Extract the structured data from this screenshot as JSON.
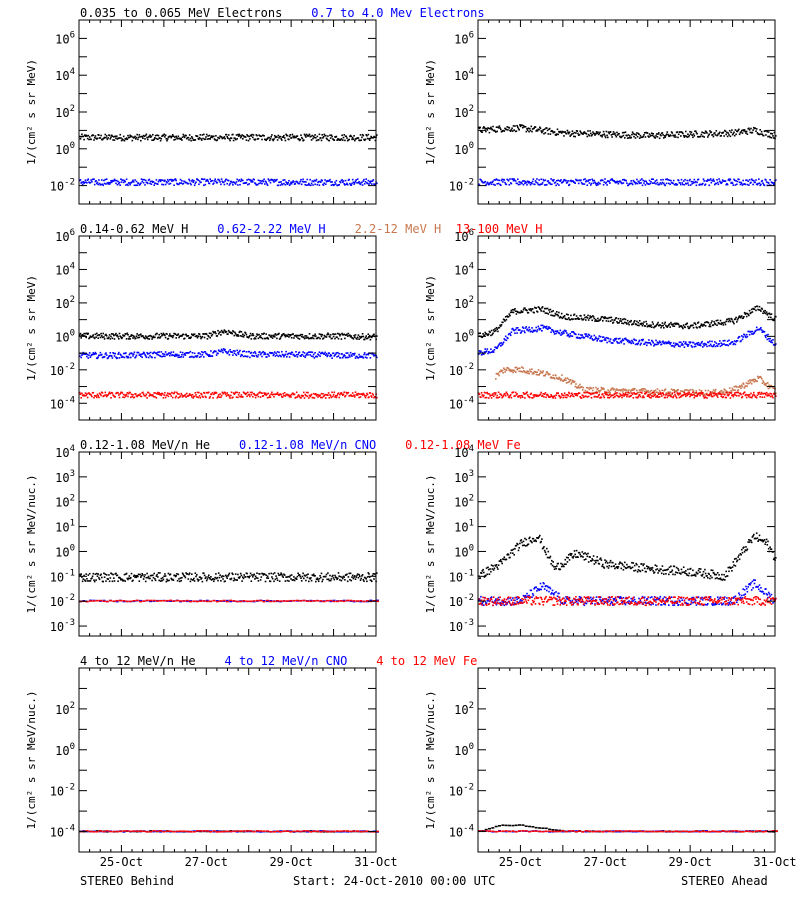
{
  "footer": {
    "left": "STEREO Behind",
    "center": "Start: 24-Oct-2010 00:00 UTC",
    "right": "STEREO Ahead"
  },
  "x_ticks": [
    "25-Oct",
    "27-Oct",
    "29-Oct",
    "31-Oct"
  ],
  "colors": {
    "black": "#000000",
    "blue": "#0000ff",
    "brown": "#c87850",
    "red": "#ff0000"
  },
  "rows": [
    {
      "labels": [
        {
          "text": "0.035 to 0.065 MeV Electrons",
          "color": "black"
        },
        {
          "text": "0.7 to 4.0 Mev Electrons",
          "color": "blue"
        }
      ],
      "ylabel": "1/(cm² s sr MeV)",
      "ymin_exp": -3,
      "ymax_exp": 7,
      "yticks": [
        {
          "base": "10",
          "exp": "-2"
        },
        {
          "base": "10",
          "exp": "0"
        },
        {
          "base": "10",
          "exp": "2"
        },
        {
          "base": "10",
          "exp": "4"
        },
        {
          "base": "10",
          "exp": "6"
        }
      ]
    },
    {
      "labels": [
        {
          "text": "0.14-0.62 MeV H",
          "color": "black"
        },
        {
          "text": "0.62-2.22 MeV H",
          "color": "blue"
        },
        {
          "text": "2.2-12 MeV H",
          "color": "brown"
        },
        {
          "text": "13-100 MeV H",
          "color": "red"
        }
      ],
      "ylabel": "1/(cm² s sr MeV)",
      "ymin_exp": -5,
      "ymax_exp": 6,
      "yticks": [
        {
          "base": "10",
          "exp": "-4"
        },
        {
          "base": "10",
          "exp": "-2"
        },
        {
          "base": "10",
          "exp": "0"
        },
        {
          "base": "10",
          "exp": "2"
        },
        {
          "base": "10",
          "exp": "4"
        },
        {
          "base": "10",
          "exp": "6"
        }
      ]
    },
    {
      "labels": [
        {
          "text": "0.12-1.08 MeV/n He",
          "color": "black"
        },
        {
          "text": "0.12-1.08 MeV/n CNO",
          "color": "blue"
        },
        {
          "text": "0.12-1.08 MeV Fe",
          "color": "red"
        }
      ],
      "ylabel": "1/(cm² s sr MeV/nuc.)",
      "ymin_exp": -3.4,
      "ymax_exp": 4,
      "yticks": [
        {
          "base": "10",
          "exp": "-3"
        },
        {
          "base": "10",
          "exp": "-2"
        },
        {
          "base": "10",
          "exp": "-1"
        },
        {
          "base": "10",
          "exp": "0"
        },
        {
          "base": "10",
          "exp": "1"
        },
        {
          "base": "10",
          "exp": "2"
        },
        {
          "base": "10",
          "exp": "3"
        },
        {
          "base": "10",
          "exp": "4"
        }
      ]
    },
    {
      "labels": [
        {
          "text": "4 to 12 MeV/n He",
          "color": "black"
        },
        {
          "text": "4 to 12 MeV/n CNO",
          "color": "blue"
        },
        {
          "text": "4 to 12 MeV Fe",
          "color": "red"
        }
      ],
      "ylabel": "1/(cm² s sr MeV/nuc.)",
      "ymin_exp": -5,
      "ymax_exp": 4,
      "yticks": [
        {
          "base": "10",
          "exp": "-4"
        },
        {
          "base": "10",
          "exp": "-2"
        },
        {
          "base": "10",
          "exp": "0"
        },
        {
          "base": "10",
          "exp": "2"
        }
      ]
    }
  ],
  "chart_data": [
    {
      "type": "scatter",
      "panel": "STEREO Behind, electrons",
      "x_range": [
        "24-Oct-2010",
        "31-Oct-2010"
      ],
      "yscale": "log",
      "series": [
        {
          "name": "0.035 to 0.065 MeV Electrons",
          "color": "black",
          "x_days": [
            0,
            1,
            2,
            3,
            4,
            5,
            6,
            7
          ],
          "y": [
            4,
            4,
            4,
            4,
            4,
            4,
            4,
            4
          ]
        },
        {
          "name": "0.7 to 4.0 Mev Electrons",
          "color": "blue",
          "x_days": [
            0,
            1,
            2,
            3,
            4,
            5,
            6,
            7
          ],
          "y": [
            0.015,
            0.015,
            0.015,
            0.015,
            0.015,
            0.015,
            0.015,
            0.015
          ]
        }
      ]
    },
    {
      "type": "scatter",
      "panel": "STEREO Ahead, electrons",
      "x_range": [
        "24-Oct-2010",
        "31-Oct-2010"
      ],
      "yscale": "log",
      "series": [
        {
          "name": "0.035 to 0.065 MeV Electrons",
          "color": "black",
          "x_days": [
            0,
            0.5,
            1,
            2,
            3,
            4,
            5,
            6,
            6.5,
            7
          ],
          "y": [
            10,
            12,
            13,
            7,
            6,
            5,
            6,
            7,
            10,
            5
          ]
        },
        {
          "name": "0.7 to 4.0 Mev Electrons",
          "color": "blue",
          "x_days": [
            0,
            1,
            2,
            3,
            4,
            5,
            6,
            7
          ],
          "y": [
            0.015,
            0.015,
            0.015,
            0.015,
            0.015,
            0.015,
            0.015,
            0.015
          ]
        }
      ]
    },
    {
      "type": "scatter",
      "panel": "STEREO Behind, protons",
      "x_range": [
        "24-Oct-2010",
        "31-Oct-2010"
      ],
      "yscale": "log",
      "series": [
        {
          "name": "0.14-0.62 MeV H",
          "color": "black",
          "x_days": [
            0,
            1,
            2,
            3,
            3.4,
            4,
            5,
            6,
            7
          ],
          "y": [
            1,
            1,
            1,
            1,
            2,
            1,
            1,
            1,
            0.9
          ]
        },
        {
          "name": "0.62-2.22 MeV H",
          "color": "blue",
          "x_days": [
            0,
            1,
            2,
            3,
            3.4,
            4,
            5,
            6,
            7
          ],
          "y": [
            0.07,
            0.07,
            0.08,
            0.08,
            0.12,
            0.08,
            0.08,
            0.07,
            0.07
          ]
        },
        {
          "name": "13-100 MeV H",
          "color": "red",
          "x_days": [
            0,
            1,
            2,
            3,
            4,
            5,
            6,
            7
          ],
          "y": [
            0.0003,
            0.0003,
            0.0003,
            0.0003,
            0.0003,
            0.0003,
            0.0003,
            0.0003
          ]
        }
      ]
    },
    {
      "type": "scatter",
      "panel": "STEREO Ahead, protons",
      "x_range": [
        "24-Oct-2010",
        "31-Oct-2010"
      ],
      "yscale": "log",
      "series": [
        {
          "name": "0.14-0.62 MeV H",
          "color": "black",
          "x_days": [
            0,
            0.4,
            0.8,
            1.5,
            2,
            3,
            4,
            5,
            6,
            6.6,
            7
          ],
          "y": [
            1,
            2,
            30,
            40,
            15,
            10,
            5,
            4,
            8,
            50,
            10
          ]
        },
        {
          "name": "0.62-2.22 MeV H",
          "color": "blue",
          "x_days": [
            0,
            0.4,
            0.8,
            1.5,
            2,
            3,
            4,
            5,
            6,
            6.6,
            7
          ],
          "y": [
            0.1,
            0.15,
            2,
            3,
            1.5,
            0.6,
            0.4,
            0.3,
            0.4,
            3,
            0.3
          ]
        },
        {
          "name": "2.2-12 MeV H",
          "color": "brown",
          "x_days": [
            0.4,
            0.6,
            1,
            1.5,
            2,
            2.5,
            5.5,
            6,
            6.6,
            7
          ],
          "y": [
            0.004,
            0.01,
            0.01,
            0.006,
            0.003,
            0.0006,
            0.0004,
            0.0006,
            0.003,
            0.0005
          ]
        },
        {
          "name": "13-100 MeV H",
          "color": "red",
          "x_days": [
            0,
            1,
            2,
            3,
            4,
            5,
            6,
            7
          ],
          "y": [
            0.0003,
            0.0003,
            0.0003,
            0.0003,
            0.0003,
            0.0003,
            0.0003,
            0.0003
          ]
        }
      ]
    },
    {
      "type": "scatter",
      "panel": "STEREO Behind, heavy ions low",
      "x_range": [
        "24-Oct-2010",
        "31-Oct-2010"
      ],
      "yscale": "log",
      "series": [
        {
          "name": "0.12-1.08 MeV/n He",
          "color": "black",
          "x_days": [
            0,
            1,
            2,
            3,
            4,
            5,
            6,
            7
          ],
          "y": [
            0.09,
            0.09,
            0.09,
            0.09,
            0.09,
            0.09,
            0.09,
            0.09
          ]
        },
        {
          "name": "0.12-1.08 MeV/n CNO",
          "color": "blue",
          "x_days": [
            0,
            1,
            2,
            3,
            4,
            5,
            6,
            7
          ],
          "y": [
            0.01,
            0.01,
            0.01,
            0.01,
            0.01,
            0.01,
            0.01,
            0.01
          ]
        },
        {
          "name": "0.12-1.08 MeV Fe",
          "color": "red",
          "x_days": [
            0,
            1,
            2,
            3,
            4,
            5,
            6,
            7
          ],
          "y": [
            0.01,
            0.01,
            0.01,
            0.01,
            0.01,
            0.01,
            0.01,
            0.01
          ]
        }
      ]
    },
    {
      "type": "scatter",
      "panel": "STEREO Ahead, heavy ions low",
      "x_range": [
        "24-Oct-2010",
        "31-Oct-2010"
      ],
      "yscale": "log",
      "series": [
        {
          "name": "0.12-1.08 MeV/n He",
          "color": "black",
          "x_days": [
            0,
            0.5,
            1,
            1.4,
            1.8,
            2.3,
            3,
            4,
            5,
            5.8,
            6.5,
            6.8,
            7
          ],
          "y": [
            0.1,
            0.3,
            2,
            4,
            0.2,
            0.8,
            0.3,
            0.2,
            0.15,
            0.1,
            4,
            2,
            0.5
          ]
        },
        {
          "name": "0.12-1.08 MeV/n CNO",
          "color": "blue",
          "x_days": [
            0,
            1,
            1.5,
            2,
            3,
            4,
            5,
            6,
            6.5,
            7
          ],
          "y": [
            0.01,
            0.01,
            0.04,
            0.01,
            0.01,
            0.01,
            0.01,
            0.01,
            0.05,
            0.01
          ]
        },
        {
          "name": "0.12-1.08 MeV Fe",
          "color": "red",
          "x_days": [
            0,
            1,
            2,
            3,
            4,
            5,
            6,
            7
          ],
          "y": [
            0.01,
            0.01,
            0.01,
            0.01,
            0.01,
            0.01,
            0.01,
            0.01
          ]
        }
      ]
    },
    {
      "type": "scatter",
      "panel": "STEREO Behind, heavy ions high",
      "x_range": [
        "24-Oct-2010",
        "31-Oct-2010"
      ],
      "yscale": "log",
      "series": [
        {
          "name": "4 to 12 MeV/n He",
          "color": "black",
          "x_days": [
            0,
            1,
            2,
            3,
            4,
            5,
            6,
            7
          ],
          "y": [
            0.0001,
            0.0001,
            0.0001,
            0.0001,
            0.0001,
            0.0001,
            0.0001,
            0.0001
          ]
        },
        {
          "name": "4 to 12 MeV/n CNO",
          "color": "blue",
          "x_days": [
            0,
            1,
            2,
            3,
            4,
            5,
            6,
            7
          ],
          "y": [
            0.0001,
            0.0001,
            0.0001,
            0.0001,
            0.0001,
            0.0001,
            0.0001,
            0.0001
          ]
        },
        {
          "name": "4 to 12 MeV Fe",
          "color": "red",
          "x_days": [
            0,
            1,
            2,
            3,
            4,
            5,
            6,
            7
          ],
          "y": [
            0.0001,
            0.0001,
            0.0001,
            0.0001,
            0.0001,
            0.0001,
            0.0001,
            0.0001
          ]
        }
      ]
    },
    {
      "type": "scatter",
      "panel": "STEREO Ahead, heavy ions high",
      "x_range": [
        "24-Oct-2010",
        "31-Oct-2010"
      ],
      "yscale": "log",
      "series": [
        {
          "name": "4 to 12 MeV/n He",
          "color": "black",
          "x_days": [
            0,
            0.5,
            1,
            2,
            3,
            4,
            5,
            6,
            7
          ],
          "y": [
            0.0001,
            0.0002,
            0.0002,
            0.0001,
            0.0001,
            0.0001,
            0.0001,
            0.0001,
            0.0001
          ]
        },
        {
          "name": "4 to 12 MeV/n CNO",
          "color": "blue",
          "x_days": [
            0,
            1,
            2,
            3,
            4,
            5,
            6,
            7
          ],
          "y": [
            0.0001,
            0.0001,
            0.0001,
            0.0001,
            0.0001,
            0.0001,
            0.0001,
            0.0001
          ]
        },
        {
          "name": "4 to 12 MeV Fe",
          "color": "red",
          "x_days": [
            0,
            1,
            2,
            3,
            4,
            5,
            6,
            7
          ],
          "y": [
            0.0001,
            0.0001,
            0.0001,
            0.0001,
            0.0001,
            0.0001,
            0.0001,
            0.0001
          ]
        }
      ]
    }
  ]
}
